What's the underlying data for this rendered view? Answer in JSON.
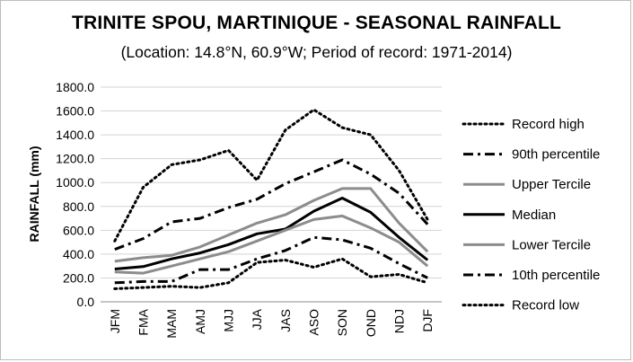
{
  "chart_data": {
    "type": "line",
    "title": "TRINITE SPOU, MARTINIQUE - SEASONAL RAINFALL",
    "subtitle": "(Location: 14.8°N, 60.9°W; Period of record: 1971-2014)",
    "xlabel": "",
    "ylabel": "RAINFALL (mm)",
    "ylim": [
      0,
      1800
    ],
    "yticks": [
      "0.0",
      "200.0",
      "400.0",
      "600.0",
      "800.0",
      "1000.0",
      "1200.0",
      "1400.0",
      "1600.0",
      "1800.0"
    ],
    "grid": "horizontal",
    "legend": "right",
    "categories": [
      "JFM",
      "FMA",
      "MAM",
      "AMJ",
      "MJJ",
      "JJA",
      "JAS",
      "ASO",
      "SON",
      "OND",
      "NDJ",
      "DJF"
    ],
    "series": [
      {
        "name": "Record high",
        "color": "#000000",
        "style": "dotted",
        "values": [
          510,
          960,
          1150,
          1190,
          1270,
          1020,
          1440,
          1610,
          1460,
          1400,
          1100,
          690
        ]
      },
      {
        "name": "90th percentile",
        "color": "#000000",
        "style": "dashdot",
        "values": [
          440,
          530,
          670,
          700,
          790,
          860,
          990,
          1090,
          1190,
          1070,
          910,
          650
        ]
      },
      {
        "name": "Upper Tercile",
        "color": "#8c8c8c",
        "style": "solid",
        "values": [
          340,
          370,
          390,
          460,
          560,
          660,
          730,
          850,
          950,
          950,
          660,
          420
        ]
      },
      {
        "name": "Median",
        "color": "#000000",
        "style": "solid",
        "values": [
          275,
          295,
          360,
          410,
          480,
          570,
          610,
          760,
          870,
          750,
          540,
          350
        ]
      },
      {
        "name": "Lower Tercile",
        "color": "#8c8c8c",
        "style": "solid",
        "values": [
          250,
          240,
          300,
          360,
          420,
          510,
          600,
          690,
          720,
          620,
          500,
          300
        ]
      },
      {
        "name": "10th percentile",
        "color": "#000000",
        "style": "dashdot",
        "values": [
          160,
          170,
          170,
          270,
          270,
          360,
          430,
          540,
          520,
          450,
          320,
          200
        ]
      },
      {
        "name": "Record low",
        "color": "#000000",
        "style": "dotted",
        "values": [
          110,
          120,
          130,
          120,
          160,
          330,
          350,
          290,
          360,
          210,
          230,
          160
        ]
      }
    ]
  }
}
